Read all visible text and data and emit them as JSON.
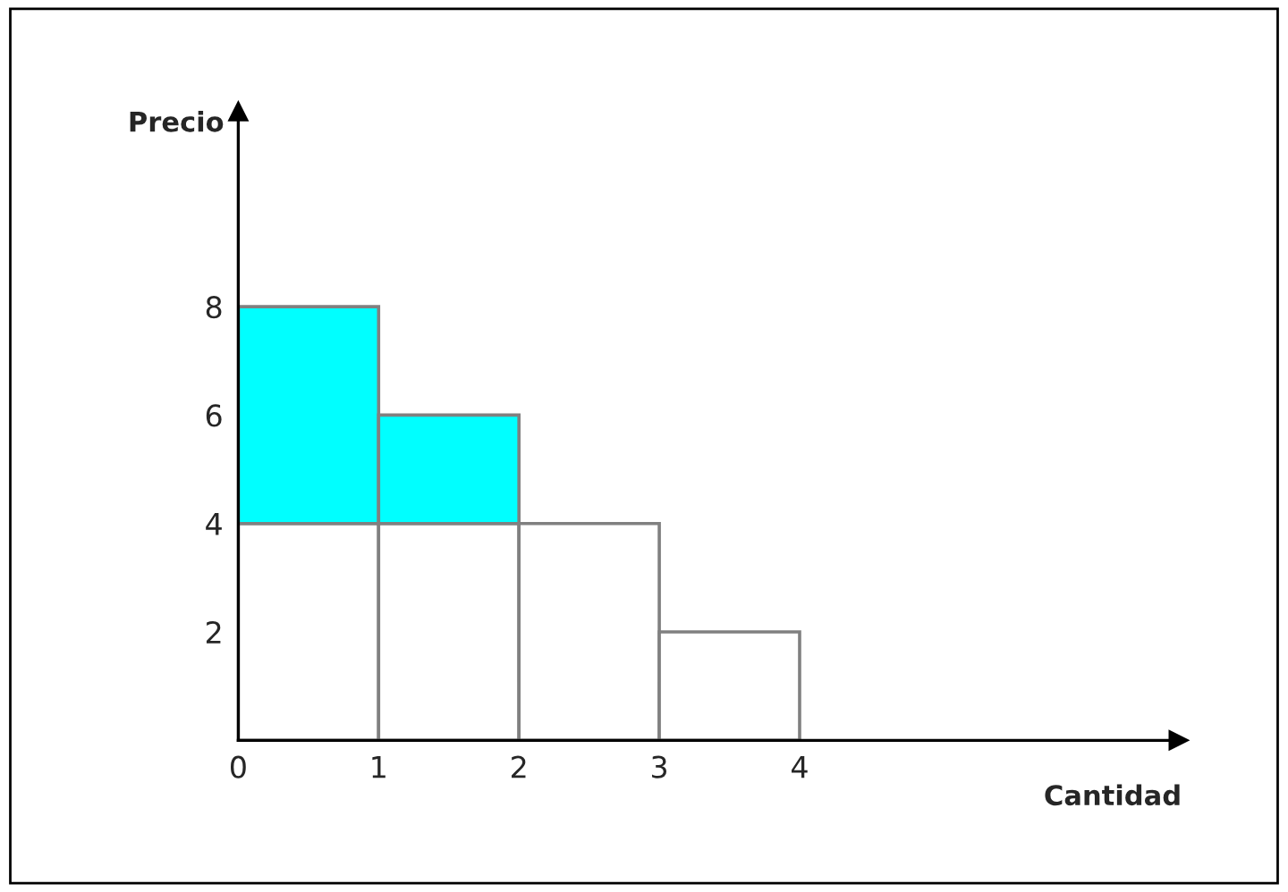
{
  "chart_data": {
    "type": "bar",
    "stacked": true,
    "xlabel": "Cantidad",
    "ylabel": "Precio",
    "x": [
      0.5,
      1.5,
      2.5,
      3.5
    ],
    "series": [
      {
        "color": "#ffffff",
        "values": [
          4,
          4,
          4,
          2
        ]
      },
      {
        "color": "#00ffff",
        "values": [
          4,
          2,
          null,
          null
        ]
      }
    ],
    "xlim": [
      0,
      6.7
    ],
    "ylim": [
      0,
      11.6
    ],
    "xticks": [
      0,
      1,
      2,
      3,
      4
    ],
    "yticks": [
      2,
      4,
      6,
      8
    ],
    "grid": false,
    "legend": false
  }
}
